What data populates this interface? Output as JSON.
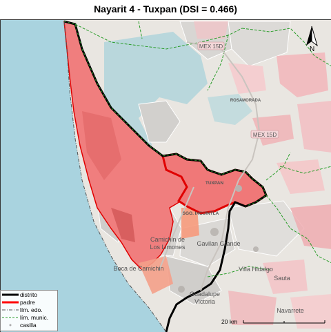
{
  "title": "Nayarit 4 - Tuxpan (DSI = 0.466)",
  "map": {
    "places": {
      "tuxpan": "TUXPAN",
      "santiago": "SGO. IXCUINTLA",
      "rosamorada": "ROSAMORADA",
      "camichin_1": "Camichin de",
      "camichin_2": "Los Limones",
      "gavilan": "Gavilan Grande",
      "villa_hidalgo": "Villa Hidalgo",
      "boca": "Boca de Camichin",
      "guadalupe_1": "Guadalupe",
      "guadalupe_2": "Victoria",
      "sauta": "Sauta",
      "navarrete": "Navarrete"
    },
    "roads": {
      "mex15_top": "MEX 15D",
      "mex15_mid": "MEX 15D"
    },
    "north_label": "N",
    "scalebar_label": "20 km"
  },
  "legend": {
    "items": [
      {
        "label": "distrito",
        "color": "#000000"
      },
      {
        "label": "padre",
        "color": "#ff0000"
      },
      {
        "label": "lím. edo.",
        "color": "#555555"
      },
      {
        "label": "lím. munic.",
        "color": "#2a9d2a"
      },
      {
        "label": "casilla",
        "color": "#aaaaaa"
      }
    ]
  }
}
